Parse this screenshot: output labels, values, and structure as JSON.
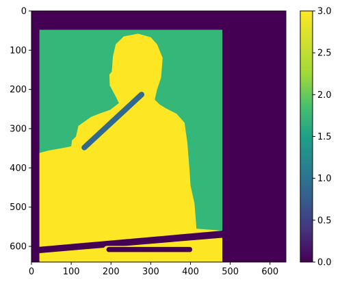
{
  "chart_data": {
    "type": "heatmap",
    "title": "",
    "xlabel": "",
    "ylabel": "",
    "image_shape": [
      640,
      640
    ],
    "xlim": [
      0,
      640
    ],
    "ylim": [
      640,
      0
    ],
    "x_ticks": [
      0,
      100,
      200,
      300,
      400,
      500,
      600
    ],
    "y_ticks": [
      0,
      100,
      200,
      300,
      400,
      500,
      600
    ],
    "colormap": "viridis",
    "color_range": [
      0.0,
      3.0
    ],
    "colorbar_ticks": [
      "0.0",
      "0.5",
      "1.0",
      "1.5",
      "2.0",
      "2.5",
      "3.0"
    ],
    "class_colors": {
      "0": "#440154",
      "1": "#31688e",
      "2": "#35b779",
      "3": "#fde725"
    },
    "regions": [
      {
        "value": 0,
        "label": "background",
        "shape": "rect",
        "bounds": {
          "x": [
            0,
            640
          ],
          "y": [
            0,
            640
          ]
        }
      },
      {
        "value": 2,
        "label": "inner panel",
        "shape": "rect",
        "bounds": {
          "x": [
            20,
            480
          ],
          "y": [
            48,
            640
          ]
        }
      },
      {
        "value": 3,
        "label": "figure",
        "shape": "polygon",
        "points": [
          [
            20,
            362
          ],
          [
            20,
            640
          ],
          [
            480,
            640
          ],
          [
            480,
            560
          ],
          [
            415,
            555
          ],
          [
            410,
            490
          ],
          [
            400,
            445
          ],
          [
            398,
            410
          ],
          [
            392,
            335
          ],
          [
            385,
            285
          ],
          [
            365,
            262
          ],
          [
            338,
            248
          ],
          [
            322,
            238
          ],
          [
            310,
            226
          ],
          [
            316,
            200
          ],
          [
            326,
            170
          ],
          [
            330,
            120
          ],
          [
            316,
            85
          ],
          [
            300,
            67
          ],
          [
            268,
            58
          ],
          [
            232,
            65
          ],
          [
            212,
            85
          ],
          [
            205,
            115
          ],
          [
            202,
            155
          ],
          [
            196,
            162
          ],
          [
            197,
            190
          ],
          [
            212,
            218
          ],
          [
            220,
            235
          ],
          [
            198,
            252
          ],
          [
            170,
            262
          ],
          [
            150,
            270
          ],
          [
            118,
            293
          ],
          [
            112,
            320
          ],
          [
            102,
            330
          ],
          [
            100,
            345
          ],
          [
            75,
            350
          ],
          [
            42,
            356
          ]
        ]
      },
      {
        "value": 1,
        "label": "diagonal stroke",
        "shape": "line",
        "from": [
          133,
          348
        ],
        "to": [
          277,
          213
        ],
        "width": 14
      },
      {
        "value": 0,
        "label": "lower band",
        "shape": "polygon",
        "points": [
          [
            0,
            603
          ],
          [
            480,
            560
          ],
          [
            480,
            578
          ],
          [
            0,
            619
          ]
        ]
      },
      {
        "value": 3,
        "label": "horizontal stroke",
        "shape": "line",
        "from": [
          190,
          608
        ],
        "to": [
          403,
          608
        ],
        "width": 18
      },
      {
        "value": 0,
        "label": "horizontal stroke core",
        "shape": "line",
        "from": [
          195,
          608
        ],
        "to": [
          398,
          608
        ],
        "width": 13
      }
    ]
  }
}
